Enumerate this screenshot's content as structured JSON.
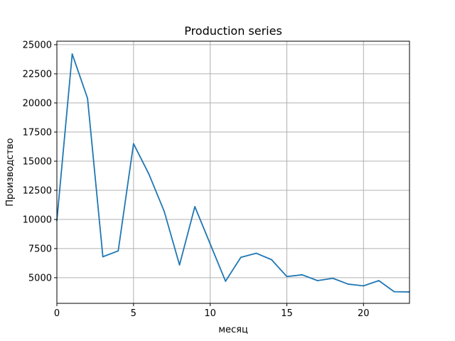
{
  "chart_data": {
    "type": "line",
    "title": "Production series",
    "xlabel": "месяц",
    "ylabel": "Производство",
    "xlim": [
      0,
      23
    ],
    "ylim": [
      2800,
      25300
    ],
    "xticks": [
      0,
      5,
      10,
      15,
      20
    ],
    "yticks": [
      5000,
      7500,
      10000,
      12500,
      15000,
      17500,
      20000,
      22500,
      25000
    ],
    "grid": true,
    "series": [
      {
        "color": "#1f77b4",
        "x": [
          0,
          1,
          2,
          3,
          4,
          5,
          6,
          7,
          8,
          9,
          10,
          11,
          12,
          13,
          14,
          15,
          16,
          17,
          18,
          19,
          20,
          21,
          22,
          23
        ],
        "y": [
          9900,
          24200,
          20400,
          6800,
          7300,
          16500,
          13900,
          10700,
          6100,
          11100,
          7900,
          4700,
          6750,
          7100,
          6550,
          5100,
          5250,
          4750,
          4950,
          4450,
          4300,
          4750,
          3800,
          3780
        ]
      }
    ]
  }
}
